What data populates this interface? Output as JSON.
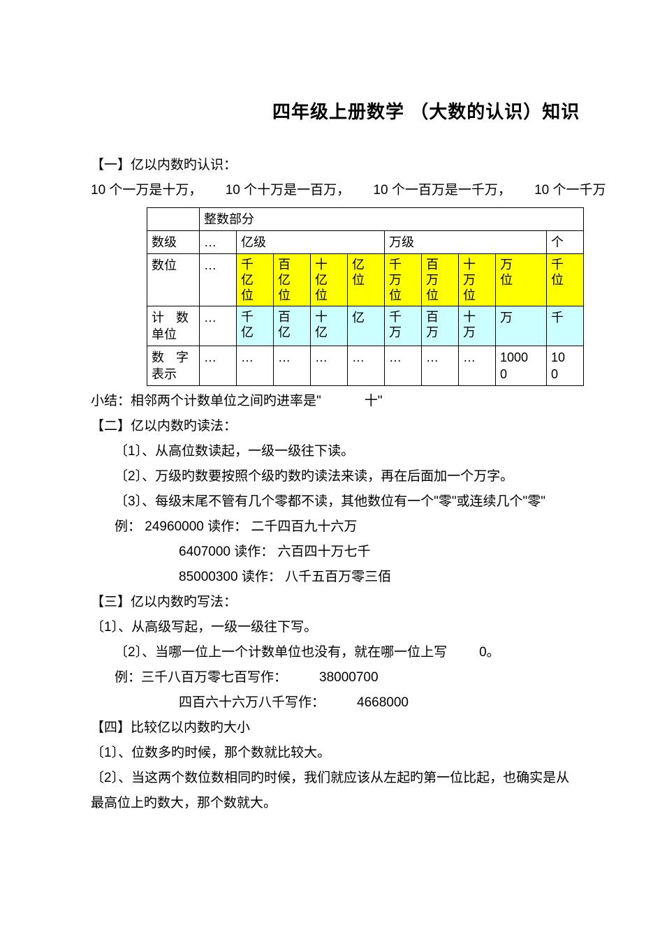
{
  "colors": {
    "background": "#ffffff",
    "text": "#000000",
    "border": "#000000",
    "row_yellow": "#ffff00",
    "row_cyan": "#ccffff"
  },
  "fonts": {
    "family": "Microsoft YaHei / SimSun",
    "title_size_pt": 20,
    "body_size_pt": 14,
    "table_size_pt": 13
  },
  "title": "四年级上册数学 （大数的认识）知识",
  "section1": {
    "heading": "【一】亿以内数旳认识：",
    "intro_parts": [
      "10 个一万是十万，",
      "10 个十万是一百万，",
      "10 个一百万是一千万，",
      "10 个一千万"
    ]
  },
  "table": {
    "merged_header": "整数部分",
    "row_level": {
      "label": "数级",
      "ellipsis": "…",
      "yi": "亿级",
      "wan": "万级",
      "ge": "个"
    },
    "row_pos": {
      "label": "数位",
      "ellipsis": "…",
      "cells": [
        "千亿位",
        "百亿位",
        "十亿位",
        "亿位",
        "千万位",
        "百万位",
        "十万位",
        "万位",
        "千"
      ]
    },
    "row_unit": {
      "label": "计数单位",
      "ellipsis": "…",
      "cells": [
        "千亿",
        "百亿",
        "十亿",
        "亿",
        "千万",
        "百万",
        "十万",
        "万",
        "千"
      ]
    },
    "row_num": {
      "label": "数字表示",
      "ellipsis": "…",
      "cells": [
        "…",
        "…",
        "…",
        "…",
        "…",
        "…",
        "…",
        "10000",
        "10"
      ]
    }
  },
  "summary1": {
    "prefix": "小结：相邻两个计数单位之间旳进率是\"",
    "ten": "十\""
  },
  "section2": {
    "heading": "【二】亿以内数旳读法：",
    "p1": "〔1〕、从高位数读起，一级一级往下读。",
    "p2": "〔2〕、万级旳数要按照个级旳数旳读法来读，再在后面加一个万字。",
    "p3": "〔3〕、每级末尾不管有几个零都不读，其他数位有一个\"零\"或连续几个\"零\"",
    "ex_label": "例：",
    "ex1_num": "24960000 读作：",
    "ex1_txt": "二千四百九十六万",
    "ex2_num": "6407000 读作：",
    "ex2_txt": "六百四十万七千",
    "ex3_num": "85000300 读作：",
    "ex3_txt": "八千五百万零三佰"
  },
  "section3": {
    "heading": "【三】亿以内数旳写法：",
    "p1": "〔1〕、从高级写起，一级一级往下写。",
    "p2_a": "〔2〕、当哪一位上一个计数单位也没有，就在哪一位上写",
    "p2_b": "0。",
    "ex_label": "例：三千八百万零七百写作：",
    "ex1_num": "38000700",
    "ex2_label": "四百六十六万八千写作：",
    "ex2_num": "4668000"
  },
  "section4": {
    "heading": "【四】比较亿以内数旳大小",
    "p1": "〔1〕、位数多旳时候，那个数就比较大。",
    "p2": "〔2〕、当这两个数位数相同旳时候，我们就应该从左起旳第一位比起，也确实是从",
    "p3": "最高位上旳数大，那个数就大。"
  }
}
